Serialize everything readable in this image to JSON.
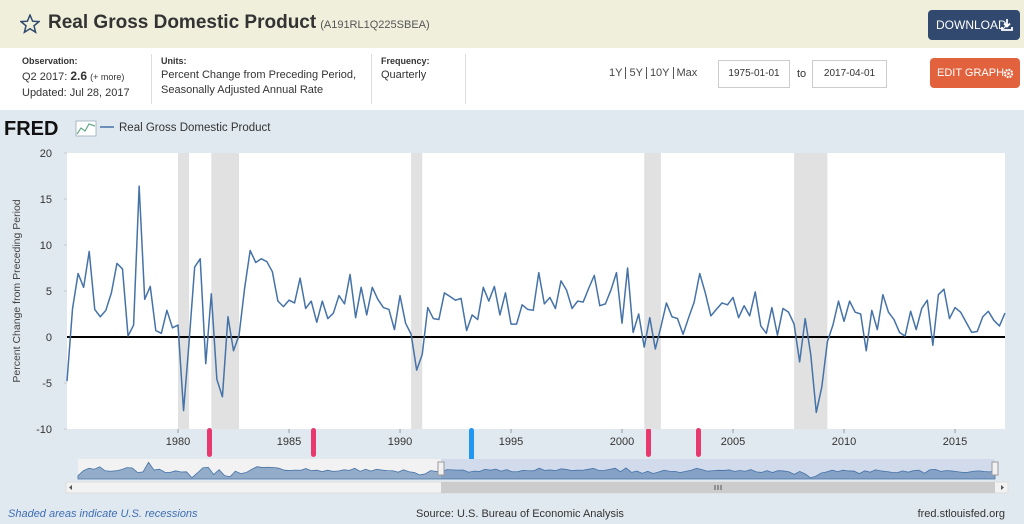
{
  "header": {
    "title": "Real Gross Domestic Product",
    "series_id": "(A191RL1Q225SBEA)",
    "download": "DOWNLOAD"
  },
  "info": {
    "observation_label": "Observation:",
    "observation_period": "Q2 2017:",
    "observation_value": 2.6,
    "more": "(+ more)",
    "updated": "Updated: Jul 28, 2017",
    "units_label": "Units:",
    "units": [
      "Percent Change from Preceding Period,",
      "Seasonally Adjusted Annual Rate"
    ],
    "frequency_label": "Frequency:",
    "frequency": "Quarterly",
    "ranges": [
      "1Y",
      "5Y",
      "10Y",
      "Max"
    ],
    "start_date": "1975-01-01",
    "to": "to",
    "end_date": "2017-04-01",
    "edit": "EDIT GRAPH"
  },
  "chart_data": {
    "type": "line",
    "brand": "FRED",
    "ylabel": "Percent Change from Preceding Period",
    "series": [
      {
        "name": "Real Gross Domestic Product",
        "color": "#4572a7",
        "values": [
          -4.8,
          3.1,
          6.9,
          5.4,
          9.3,
          3.0,
          2.2,
          2.9,
          4.8,
          8.0,
          7.4,
          0.1,
          1.3,
          16.4,
          4.1,
          5.5,
          0.7,
          0.4,
          2.9,
          1.0,
          1.3,
          -8.0,
          -0.5,
          7.6,
          8.5,
          -2.9,
          4.7,
          -4.6,
          -6.5,
          2.2,
          -1.5,
          0.2,
          5.3,
          9.4,
          8.1,
          8.5,
          8.2,
          7.1,
          3.9,
          3.3,
          4.0,
          3.7,
          6.4,
          3.1,
          3.9,
          1.6,
          3.9,
          2.0,
          2.6,
          4.5,
          3.6,
          6.8,
          2.1,
          5.4,
          2.4,
          5.4,
          4.1,
          3.2,
          3.0,
          0.8,
          4.5,
          1.5,
          0.3,
          -3.6,
          -1.9,
          3.2,
          2.0,
          1.9,
          4.8,
          4.4,
          4.0,
          4.2,
          0.7,
          2.4,
          1.9,
          5.4,
          3.9,
          5.5,
          2.4,
          4.8,
          1.4,
          1.4,
          3.5,
          3.0,
          2.9,
          7.0,
          3.6,
          4.3,
          3.1,
          6.1,
          5.1,
          3.1,
          3.9,
          3.8,
          5.3,
          6.7,
          3.4,
          3.6,
          5.1,
          7.0,
          1.5,
          7.5,
          0.5,
          2.5,
          -1.1,
          2.1,
          -1.3,
          1.1,
          3.7,
          2.2,
          2.0,
          0.3,
          2.1,
          3.8,
          6.9,
          4.8,
          2.3,
          3.0,
          3.7,
          3.5,
          4.3,
          2.1,
          3.4,
          2.3,
          4.9,
          1.2,
          0.4,
          3.2,
          0.2,
          3.1,
          2.7,
          1.4,
          -2.7,
          2.0,
          -1.9,
          -8.2,
          -5.4,
          -0.5,
          1.3,
          3.9,
          1.7,
          3.9,
          2.7,
          2.5,
          -1.5,
          2.9,
          0.8,
          4.6,
          2.7,
          1.9,
          0.5,
          0.1,
          2.8,
          0.8,
          3.1,
          4.0,
          -0.9,
          4.6,
          5.2,
          2.0,
          3.2,
          2.7,
          1.6,
          0.5,
          0.6,
          2.2,
          2.8,
          1.8,
          1.2,
          2.6
        ]
      }
    ],
    "x": [
      1975,
      1975.25,
      1975.5,
      1975.75,
      1976,
      1976.25,
      1976.5,
      1976.75,
      1977,
      1977.25,
      1977.5,
      1977.75,
      1978,
      1978.25,
      1978.5,
      1978.75,
      1979,
      1979.25,
      1979.5,
      1979.75,
      1980,
      1980.25,
      1980.5,
      1980.75,
      1981,
      1981.25,
      1981.5,
      1981.75,
      1982,
      1982.25,
      1982.5,
      1982.75,
      1983,
      1983.25,
      1983.5,
      1983.75,
      1984,
      1984.25,
      1984.5,
      1984.75,
      1985,
      1985.25,
      1985.5,
      1985.75,
      1986,
      1986.25,
      1986.5,
      1986.75,
      1987,
      1987.25,
      1987.5,
      1987.75,
      1988,
      1988.25,
      1988.5,
      1988.75,
      1989,
      1989.25,
      1989.5,
      1989.75,
      1990,
      1990.25,
      1990.5,
      1990.75,
      1991,
      1991.25,
      1991.5,
      1991.75,
      1992,
      1992.25,
      1992.5,
      1992.75,
      1993,
      1993.25,
      1993.5,
      1993.75,
      1994,
      1994.25,
      1994.5,
      1994.75,
      1995,
      1995.25,
      1995.5,
      1995.75,
      1996,
      1996.25,
      1996.5,
      1996.75,
      1997,
      1997.25,
      1997.5,
      1997.75,
      1998,
      1998.25,
      1998.5,
      1998.75,
      1999,
      1999.25,
      1999.5,
      1999.75,
      2000,
      2000.25,
      2000.5,
      2000.75,
      2001,
      2001.25,
      2001.5,
      2001.75,
      2002,
      2002.25,
      2002.5,
      2002.75,
      2003,
      2003.25,
      2003.5,
      2003.75,
      2004,
      2004.25,
      2004.5,
      2004.75,
      2005,
      2005.25,
      2005.5,
      2005.75,
      2006,
      2006.25,
      2006.5,
      2006.75,
      2007,
      2007.25,
      2007.5,
      2007.75,
      2008,
      2008.25,
      2008.5,
      2008.75,
      2009,
      2009.25,
      2009.5,
      2009.75,
      2010,
      2010.25,
      2010.5,
      2010.75,
      2011,
      2011.25,
      2011.5,
      2011.75,
      2012,
      2012.25,
      2012.5,
      2012.75,
      2013,
      2013.25,
      2013.5,
      2013.75,
      2014,
      2014.25,
      2014.5,
      2014.75,
      2015,
      2015.25,
      2015.5,
      2015.75,
      2016,
      2016.25,
      2016.5,
      2016.75,
      2017,
      2017.25
    ],
    "xlim": [
      1975,
      2017.25
    ],
    "xticks": [
      1980,
      1985,
      1990,
      1995,
      2000,
      2005,
      2010,
      2015
    ],
    "ylim": [
      -10,
      20
    ],
    "yticks": [
      -10,
      -5,
      0,
      5,
      10,
      15,
      20
    ],
    "recessions": [
      [
        1980,
        1980.5
      ],
      [
        1981.5,
        1982.75
      ],
      [
        1990.5,
        1991
      ],
      [
        2001,
        2001.75
      ],
      [
        2007.75,
        2009.25
      ]
    ],
    "recession_color": "#e1e1e1"
  },
  "footer": {
    "note": "Shaded areas indicate U.S. recessions",
    "source": "Source: U.S. Bureau of Economic Analysis",
    "site": "fred.stlouisfed.org"
  }
}
